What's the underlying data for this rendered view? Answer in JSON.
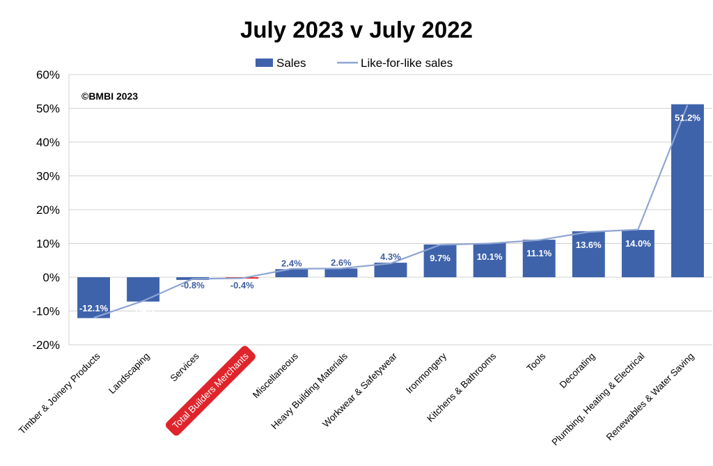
{
  "chart_data": {
    "type": "bar",
    "title": "July 2023 v July 2022",
    "annotation": "©BMBI 2023",
    "categories": [
      "Timber & Joinery Products",
      "Landscaping",
      "Services",
      "Total Builders Merchants",
      "Miscellaneous",
      "Heavy Building Materials",
      "Workwear & Safetywear",
      "Ironmongery",
      "Kitchens & Bathrooms",
      "Tools",
      "Decorating",
      "Plumbing, Heating & Electrical",
      "Renewables & Water Saving"
    ],
    "highlight_category": "Total Builders Merchants",
    "series": [
      {
        "name": "Sales",
        "kind": "bar",
        "values": [
          -12.1,
          -7.2,
          -0.8,
          -0.4,
          2.4,
          2.6,
          4.3,
          9.7,
          10.1,
          11.1,
          13.6,
          14.0,
          51.2
        ],
        "labels": [
          "-12.1%",
          "-7.2%",
          "-0.8%",
          "-0.4%",
          "2.4%",
          "2.6%",
          "4.3%",
          "9.7%",
          "10.1%",
          "11.1%",
          "13.6%",
          "14.0%",
          "51.2%"
        ]
      },
      {
        "name": "Like-for-like sales",
        "kind": "line",
        "values": [
          -12.0,
          -7.0,
          -0.5,
          -0.3,
          2.5,
          2.6,
          4.1,
          9.6,
          10.0,
          11.0,
          13.4,
          14.1,
          51.0
        ]
      }
    ],
    "ylim": [
      -20,
      60
    ],
    "yticks": [
      -20,
      -10,
      0,
      10,
      20,
      30,
      40,
      50,
      60
    ],
    "ytick_labels": [
      "-20%",
      "-10%",
      "0%",
      "10%",
      "20%",
      "30%",
      "40%",
      "50%",
      "60%"
    ],
    "grid": true,
    "legend": "top",
    "colors": {
      "bar": "#3f63ab",
      "highlight_bar": "#e0242b",
      "line": "#8fa5d2",
      "highlight_label_bg": "#e0242b",
      "grid": "#d0d0d0",
      "text": "#000000",
      "label_dark": "#3f5fa0",
      "label_light": "#ffffff"
    }
  }
}
